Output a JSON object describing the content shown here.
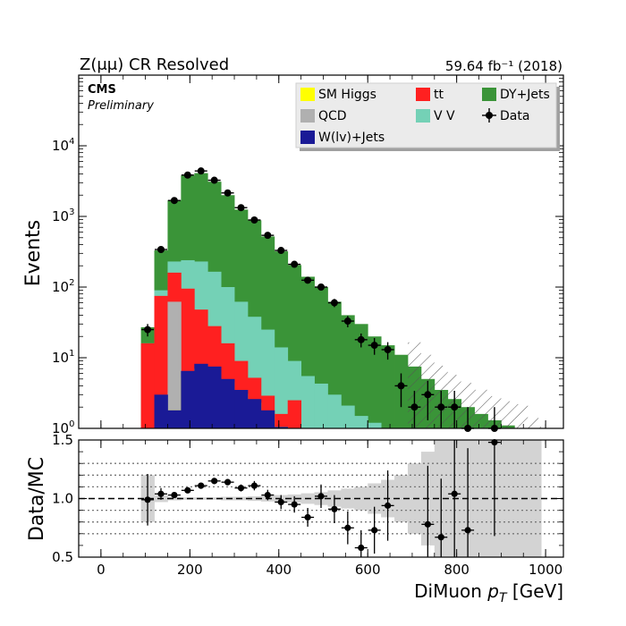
{
  "header": {
    "left_title": "Z(μμ) CR Resolved",
    "right_title": "59.64 fb⁻¹ (2018)",
    "cms_label": "CMS",
    "cms_sublabel": "Preliminary"
  },
  "colors": {
    "sm_higgs": "#ffff00",
    "ttbar": "#ff2020",
    "dy_jets": "#3a9438",
    "qcd": "#b0b0b0",
    "vv": "#74d1b6",
    "wjets": "#1a1a96",
    "data": "#000000",
    "uncertainty": "#d3d3d3"
  },
  "chart_data": [
    {
      "type": "bar",
      "stacked": true,
      "yscale": "log",
      "title": "Z(μμ) CR Resolved",
      "xlabel": "DiMuon p_T [GeV]",
      "ylabel": "Events",
      "xlim": [
        -50,
        1040
      ],
      "ylim": [
        1,
        100000
      ],
      "x_ticks": [
        0,
        200,
        400,
        600,
        800,
        1000
      ],
      "legend_position": "top-right",
      "legend": [
        {
          "name": "SM Higgs",
          "kind": "fill",
          "color_key": "sm_higgs"
        },
        {
          "name": "tt",
          "kind": "fill",
          "color_key": "ttbar"
        },
        {
          "name": "DY+Jets",
          "kind": "fill",
          "color_key": "dy_jets"
        },
        {
          "name": "QCD",
          "kind": "fill",
          "color_key": "qcd"
        },
        {
          "name": "V V",
          "kind": "fill",
          "color_key": "vv"
        },
        {
          "name": "Data",
          "kind": "marker",
          "color_key": "data"
        },
        {
          "name": "W(lv)+Jets",
          "kind": "fill",
          "color_key": "wjets"
        }
      ],
      "bin_edges": [
        90,
        120,
        150,
        180,
        210,
        240,
        270,
        300,
        330,
        360,
        390,
        420,
        450,
        480,
        510,
        540,
        570,
        600,
        630,
        660,
        690,
        720,
        750,
        780,
        810,
        840,
        870,
        900,
        930,
        960,
        990
      ],
      "stack_tops": [
        {
          "name": "W(lv)+Jets",
          "color_key": "wjets",
          "values": [
            0,
            3.0,
            1.8,
            6.5,
            8.2,
            7.5,
            5.0,
            3.5,
            2.6,
            1.8,
            1.05,
            0,
            0,
            0,
            0,
            0,
            0,
            0,
            0,
            0,
            0,
            0,
            0,
            0,
            0,
            0,
            0,
            0,
            0,
            0
          ]
        },
        {
          "name": "SM Higgs",
          "color_key": "sm_higgs",
          "values": [
            0,
            0,
            1.8,
            5.2,
            7.0,
            6.3,
            4.5,
            3.1,
            2.3,
            1.6,
            1.05,
            0,
            0,
            0,
            0,
            0,
            0,
            0,
            0,
            0,
            0,
            0,
            0,
            0,
            0,
            0,
            0,
            0,
            0,
            0
          ]
        },
        {
          "name": "QCD",
          "color_key": "qcd",
          "values": [
            0,
            0,
            62,
            0,
            0,
            0,
            0,
            0,
            0,
            0,
            0,
            0,
            0,
            0,
            0,
            0,
            0,
            0,
            0,
            0,
            0,
            0,
            0,
            0,
            0,
            0,
            0,
            0,
            0,
            0
          ]
        },
        {
          "name": "tt",
          "color_key": "ttbar",
          "values": [
            16,
            75,
            160,
            95,
            48,
            28,
            16,
            9,
            5.2,
            2.9,
            1.6,
            2.5,
            0,
            0,
            0,
            0,
            0,
            0,
            0,
            0,
            0,
            0,
            0,
            0,
            0,
            0,
            0,
            0,
            0,
            0
          ]
        },
        {
          "name": "V V",
          "color_key": "vv",
          "values": [
            16,
            90,
            230,
            240,
            230,
            165,
            100,
            62,
            38,
            25,
            14,
            9,
            5.5,
            4.3,
            3.0,
            2.1,
            1.5,
            1.2,
            1.0,
            0,
            0,
            0,
            0,
            0,
            0,
            0,
            0,
            0,
            0,
            0
          ]
        },
        {
          "name": "DY+Jets",
          "color_key": "dy_jets",
          "values": [
            27,
            330,
            1700,
            3800,
            4100,
            3100,
            2000,
            1250,
            880,
            520,
            320,
            205,
            140,
            100,
            62,
            40,
            30,
            20,
            15,
            11,
            7.5,
            5.0,
            3.5,
            2.6,
            2.0,
            1.6,
            1.3,
            1.1,
            1.0,
            0
          ]
        }
      ],
      "hatched_uncertainty_bins": [
        [
          690,
          990
        ]
      ],
      "data": {
        "x": [
          105,
          135,
          165,
          195,
          225,
          255,
          285,
          315,
          345,
          375,
          405,
          435,
          465,
          495,
          525,
          555,
          585,
          615,
          645,
          675,
          705,
          735,
          765,
          795,
          825,
          885
        ],
        "y": [
          25,
          340,
          1680,
          3850,
          4400,
          3250,
          2150,
          1330,
          890,
          540,
          330,
          210,
          125,
          100,
          60,
          33,
          18,
          15,
          13,
          4,
          2,
          3,
          2,
          2,
          1,
          1
        ],
        "yerr": [
          5,
          18,
          41,
          62,
          66,
          57,
          46,
          36,
          30,
          23,
          18,
          14,
          11,
          10,
          8,
          6,
          4,
          4,
          3.6,
          2,
          1.4,
          1.7,
          1.4,
          1.4,
          1.0,
          1.0
        ]
      }
    },
    {
      "type": "scatter",
      "ylabel": "Data/MC",
      "xlabel": "DiMuon p_T [GeV]",
      "xlim": [
        -50,
        1040
      ],
      "ylim": [
        0.5,
        1.5
      ],
      "y_ticks": [
        0.5,
        1.0,
        1.5
      ],
      "reference_lines": [
        0.7,
        0.8,
        0.9,
        1.1,
        1.2,
        1.3
      ],
      "unity_line": 1.0,
      "uncertainty_band": {
        "bin_edges": [
          90,
          120,
          150,
          180,
          210,
          240,
          270,
          300,
          330,
          360,
          390,
          420,
          450,
          480,
          510,
          540,
          570,
          600,
          630,
          660,
          690,
          720,
          750,
          780,
          810,
          840,
          870,
          900,
          930,
          960,
          990
        ],
        "low": [
          0.8,
          0.97,
          0.985,
          0.99,
          0.99,
          0.99,
          0.985,
          0.985,
          0.98,
          0.975,
          0.97,
          0.965,
          0.955,
          0.945,
          0.93,
          0.915,
          0.9,
          0.87,
          0.84,
          0.8,
          0.7,
          0.6,
          0.5,
          0.5,
          0.5,
          0.5,
          0.5,
          0.5,
          0.5,
          0.5
        ],
        "high": [
          1.2,
          1.03,
          1.015,
          1.01,
          1.01,
          1.01,
          1.015,
          1.015,
          1.02,
          1.025,
          1.03,
          1.035,
          1.045,
          1.055,
          1.07,
          1.085,
          1.1,
          1.13,
          1.16,
          1.2,
          1.3,
          1.4,
          1.5,
          1.5,
          1.5,
          1.5,
          1.5,
          1.5,
          1.5,
          1.5
        ]
      },
      "points": {
        "x": [
          105,
          135,
          165,
          195,
          225,
          255,
          285,
          315,
          345,
          375,
          405,
          435,
          465,
          495,
          525,
          555,
          585,
          615,
          645,
          735,
          765,
          795,
          825,
          885
        ],
        "y": [
          0.99,
          1.04,
          1.03,
          1.07,
          1.11,
          1.15,
          1.14,
          1.09,
          1.11,
          1.03,
          0.97,
          0.95,
          0.84,
          1.02,
          0.91,
          0.75,
          0.58,
          0.73,
          0.94,
          0.78,
          0.67,
          1.04,
          0.73,
          1.48
        ],
        "yerr": [
          0.22,
          0.05,
          0.025,
          0.02,
          0.015,
          0.02,
          0.025,
          0.03,
          0.04,
          0.045,
          0.06,
          0.07,
          0.08,
          0.1,
          0.12,
          0.14,
          0.15,
          0.2,
          0.3,
          0.5,
          0.5,
          0.7,
          0.7,
          0.8
        ]
      }
    }
  ]
}
